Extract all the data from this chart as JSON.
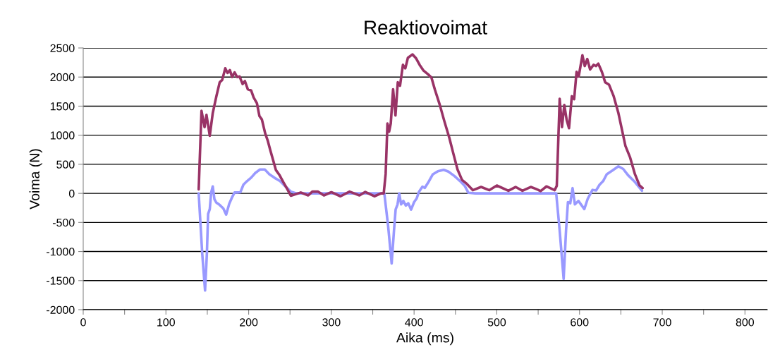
{
  "chart_data": {
    "type": "line",
    "title": "Reaktiovoimat",
    "xlabel": "Aika (ms)",
    "ylabel": "Voima (N)",
    "xlim": [
      0,
      827
    ],
    "ylim": [
      -2000,
      2500
    ],
    "xticks": [
      0,
      {
        "value": 50,
        "label": null
      },
      100,
      {
        "value": 150,
        "label": null
      },
      200,
      {
        "value": 250,
        "label": null
      },
      300,
      {
        "value": 350,
        "label": null
      },
      400,
      {
        "value": 450,
        "label": null
      },
      500,
      {
        "value": 550,
        "label": null
      },
      600,
      {
        "value": 650,
        "label": null
      },
      700,
      {
        "value": 750,
        "label": null
      },
      800
    ],
    "yticks": [
      -2000,
      -1500,
      -1000,
      -500,
      0,
      500,
      1000,
      1500,
      2000,
      2500
    ],
    "grid": "y",
    "marker": "none",
    "line_style": "solid",
    "series": [
      {
        "color": "#9999ff",
        "x": [
          139.6,
          143.9,
          147.3,
          149.5,
          151,
          153,
          154.7,
          156.6,
          158.6,
          161,
          165,
          169.4,
          172.8,
          176.5,
          180.2,
          183,
          186.5,
          190,
          193.7,
          198,
          203,
          208,
          213.7,
          219.5,
          225,
          231,
          238,
          243.7,
          250.9,
          258,
          300,
          364,
          368.6,
          372.9,
          375.7,
          377.7,
          380,
          382,
          384.3,
          387,
          390,
          393,
          396.4,
          400,
          403,
          406,
          410,
          413,
          417.4,
          422.5,
          428.8,
          435.8,
          441.5,
          448.6,
          455.7,
          461.4,
          465.7,
          474,
          520,
          571.8,
          576,
          580.8,
          583.7,
          586,
          588.8,
          591.6,
          594.4,
          598.7,
          605.8,
          610,
          615.7,
          620,
          624.3,
          628.5,
          633,
          640,
          647,
          652.8,
          658.5,
          667,
          675.5
        ],
        "values": [
          0,
          -1040,
          -1670,
          -1040,
          -355,
          -270,
          15,
          120,
          -100,
          -160,
          -200,
          -260,
          -365,
          -180,
          -60,
          15,
          15,
          20,
          150,
          210,
          270,
          350,
          410,
          410,
          330,
          270,
          210,
          130,
          30,
          0,
          0,
          0,
          -560,
          -1205,
          -640,
          -275,
          -190,
          0,
          -190,
          -130,
          -210,
          -170,
          -280,
          -150,
          -90,
          30,
          115,
          95,
          195,
          325,
          380,
          405,
          375,
          300,
          210,
          125,
          10,
          0,
          0,
          0,
          -640,
          -1470,
          -640,
          -150,
          -170,
          90,
          -190,
          -130,
          -270,
          -90,
          60,
          50,
          150,
          210,
          330,
          395,
          465,
          420,
          315,
          195,
          45
        ]
      },
      {
        "color": "#993366",
        "x": [
          139.6,
          143,
          146.7,
          149,
          153,
          156.6,
          161,
          165,
          168,
          171.7,
          174.5,
          177.3,
          180,
          183,
          186,
          189,
          192.7,
          195.5,
          199,
          203,
          206,
          210,
          213,
          216,
          220,
          223,
          226,
          230,
          233,
          237.5,
          242,
          246,
          251,
          263,
          272,
          277,
          284,
          291,
          300,
          311,
          322,
          334,
          341,
          352,
          360,
          363.3,
          365.6,
          367.8,
          369.8,
          371.8,
          374.6,
          377.5,
          380.3,
          383,
          386.5,
          389.4,
          392.5,
          398,
          402.5,
          406.7,
          411.5,
          416.7,
          421,
          425,
          431,
          436.6,
          442.5,
          448,
          452.5,
          458,
          464,
          471,
          481,
          491,
          500,
          514,
          522.7,
          531,
          541,
          547.5,
          553,
          560,
          570,
          572.5,
          576,
          578.8,
          581.6,
          584.5,
          587.3,
          590.7,
          593.5,
          596.4,
          599,
          603.5,
          606.3,
          609.4,
          612.8,
          617,
          620,
          622.7,
          627,
          631,
          635.6,
          641.3,
          647,
          651.2,
          655.5,
          661.2,
          667,
          672.6,
          676.3
        ],
        "values": [
          70,
          1420,
          1140,
          1350,
          990,
          1380,
          1670,
          1910,
          1950,
          2150,
          2070,
          2120,
          2000,
          2080,
          2000,
          2010,
          1880,
          1930,
          1790,
          1770,
          1650,
          1550,
          1330,
          1270,
          1030,
          910,
          750,
          550,
          400,
          310,
          190,
          90,
          -40,
          15,
          -35,
          30,
          30,
          -35,
          20,
          -50,
          30,
          -35,
          25,
          -50,
          0,
          0,
          330,
          1200,
          1060,
          1200,
          1790,
          1340,
          1910,
          1850,
          2210,
          2150,
          2330,
          2390,
          2320,
          2210,
          2110,
          2050,
          1990,
          1790,
          1525,
          1240,
          960,
          655,
          410,
          230,
          160,
          55,
          110,
          55,
          135,
          45,
          110,
          45,
          110,
          75,
          40,
          120,
          55,
          130,
          1625,
          1140,
          1520,
          1260,
          1120,
          1670,
          1620,
          2090,
          2010,
          2375,
          2190,
          2310,
          2130,
          2210,
          2190,
          2230,
          2090,
          1910,
          1870,
          1670,
          1380,
          1100,
          815,
          615,
          330,
          135,
          90
        ]
      }
    ]
  }
}
